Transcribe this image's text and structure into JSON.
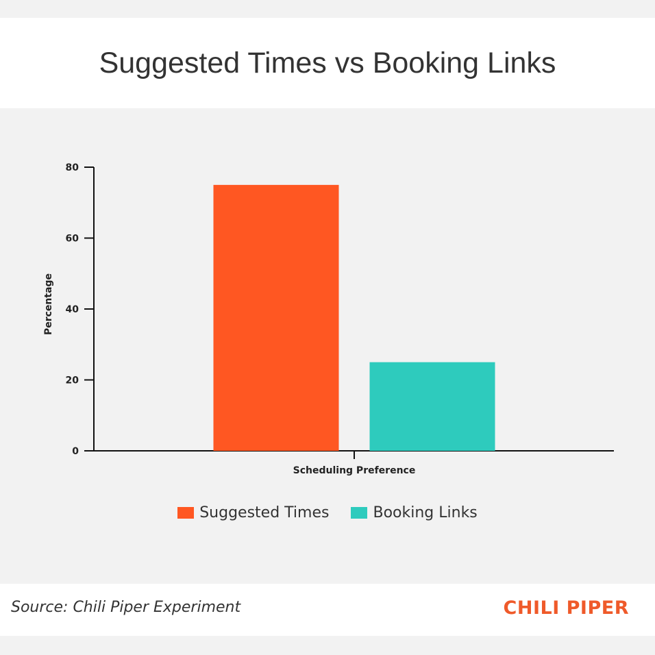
{
  "header": {
    "title": "Suggested Times vs Booking Links"
  },
  "chart_data": {
    "type": "bar",
    "title": "Suggested Times vs Booking Links",
    "categories": [
      "Scheduling Preference"
    ],
    "xlabel": "Scheduling Preference",
    "ylabel": "Percentage",
    "ylim": [
      0,
      80
    ],
    "yticks": [
      "0",
      "20",
      "40",
      "60",
      "80"
    ],
    "grid": false,
    "legend_position": "bottom",
    "series": [
      {
        "name": "Suggested Times",
        "values": [
          75
        ],
        "color": "#ff5722"
      },
      {
        "name": "Booking Links",
        "values": [
          25
        ],
        "color": "#2ecbbd"
      }
    ]
  },
  "footer": {
    "source": "Source: Chili Piper Experiment",
    "brand": "CHILI PIPER",
    "brand_color": "#ef5a2a"
  }
}
